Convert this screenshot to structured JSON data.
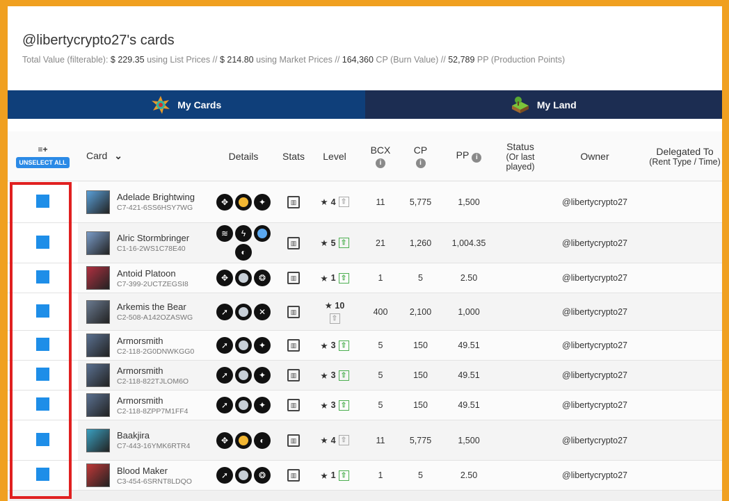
{
  "header": {
    "title": "@libertycrypto27's cards",
    "summary": {
      "lead": "Total Value (filterable): ",
      "list_value": "$ 229.35",
      "list_text": " using List Prices // ",
      "market_value": "$ 214.80",
      "market_text": " using Market Prices // ",
      "cp_value": "164,360",
      "cp_text": " CP (Burn Value) // ",
      "pp_value": "52,789",
      "pp_text": " PP (Production Points)"
    }
  },
  "tabs": [
    {
      "label": "My Cards",
      "icon": "cards-burst-icon"
    },
    {
      "label": "My Land",
      "icon": "land-plot-icon"
    }
  ],
  "table": {
    "headers": {
      "select_icon": "≡+",
      "unselect_all": "UNSELECT ALL",
      "card": "Card",
      "details": "Details",
      "stats": "Stats",
      "level": "Level",
      "bcx": "BCX",
      "cp": "CP",
      "pp": "PP",
      "status": "Status",
      "status_sub": "(Or last played)",
      "owner": "Owner",
      "delegated": "Delegated To",
      "delegated_sub": "(Rent Type / Time)"
    },
    "info_glyph": "i",
    "rows": [
      {
        "name": "Adelade Brightwing",
        "id": "C7-421-6SS6HSY7WG",
        "level": "4",
        "max": true,
        "bcx": "11",
        "cp": "5,775",
        "pp": "1,500",
        "owner": "@libertycrypto27",
        "thumb": "#5aa0d8",
        "abilities": [
          {
            "g": "✥",
            "c": "#111"
          },
          {
            "dot": "#f2b632"
          },
          {
            "g": "✦",
            "c": "#111"
          }
        ]
      },
      {
        "name": "Alric Stormbringer",
        "id": "C1-16-2WS1C78E40",
        "level": "5",
        "max": false,
        "bcx": "21",
        "cp": "1,260",
        "pp": "1,004.35",
        "owner": "@libertycrypto27",
        "thumb": "#7a9cc8",
        "abilities": [
          {
            "g": "≋",
            "c": "#111"
          },
          {
            "g": "ϟ",
            "c": "#111"
          },
          {
            "dot": "#5aa8f0"
          },
          {
            "g": "◐",
            "c": "#111"
          }
        ]
      },
      {
        "name": "Antoid Platoon",
        "id": "C7-399-2UCTZEGSI8",
        "level": "1",
        "max": false,
        "bcx": "1",
        "cp": "5",
        "pp": "2.50",
        "owner": "@libertycrypto27",
        "thumb": "#b03040",
        "abilities": [
          {
            "g": "✥",
            "c": "#111"
          },
          {
            "dot": "#c8d0d8"
          },
          {
            "g": "❂",
            "c": "#111"
          }
        ]
      },
      {
        "name": "Arkemis the Bear",
        "id": "C2-508-A142OZASWG",
        "level": "10",
        "max": true,
        "stack": true,
        "bcx": "400",
        "cp": "2,100",
        "pp": "1,000",
        "owner": "@libertycrypto27",
        "thumb": "#6a7a90",
        "abilities": [
          {
            "g": "➚",
            "c": "#111"
          },
          {
            "dot": "#c8d0d8"
          },
          {
            "g": "✕",
            "c": "#111"
          }
        ]
      },
      {
        "name": "Armorsmith",
        "id": "C2-118-2G0DNWKGG0",
        "level": "3",
        "max": false,
        "bcx": "5",
        "cp": "150",
        "pp": "49.51",
        "owner": "@libertycrypto27",
        "thumb": "#5a7090",
        "abilities": [
          {
            "g": "➚",
            "c": "#111"
          },
          {
            "dot": "#c8d0d8"
          },
          {
            "g": "✦",
            "c": "#111"
          }
        ]
      },
      {
        "name": "Armorsmith",
        "id": "C2-118-822TJLOM6O",
        "level": "3",
        "max": false,
        "bcx": "5",
        "cp": "150",
        "pp": "49.51",
        "owner": "@libertycrypto27",
        "thumb": "#5a7090",
        "abilities": [
          {
            "g": "➚",
            "c": "#111"
          },
          {
            "dot": "#c8d0d8"
          },
          {
            "g": "✦",
            "c": "#111"
          }
        ]
      },
      {
        "name": "Armorsmith",
        "id": "C2-118-8ZPP7M1FF4",
        "level": "3",
        "max": false,
        "bcx": "5",
        "cp": "150",
        "pp": "49.51",
        "owner": "@libertycrypto27",
        "thumb": "#5a7090",
        "abilities": [
          {
            "g": "➚",
            "c": "#111"
          },
          {
            "dot": "#c8d0d8"
          },
          {
            "g": "✦",
            "c": "#111"
          }
        ]
      },
      {
        "name": "Baakjira",
        "id": "C7-443-16YMK6RTR4",
        "level": "4",
        "max": true,
        "bcx": "11",
        "cp": "5,775",
        "pp": "1,500",
        "owner": "@libertycrypto27",
        "thumb": "#3aa0c0",
        "abilities": [
          {
            "g": "✥",
            "c": "#111"
          },
          {
            "dot": "#f2b632"
          },
          {
            "g": "◐",
            "c": "#111"
          }
        ]
      },
      {
        "name": "Blood Maker",
        "id": "C3-454-6SRNT8LDQO",
        "level": "1",
        "max": false,
        "bcx": "1",
        "cp": "5",
        "pp": "2.50",
        "owner": "@libertycrypto27",
        "thumb": "#c03838",
        "abilities": [
          {
            "g": "➚",
            "c": "#111"
          },
          {
            "dot": "#c8d0d8"
          },
          {
            "g": "❂",
            "c": "#111"
          }
        ]
      }
    ],
    "row_heights": [
      60,
      58,
      43,
      54,
      43,
      43,
      43,
      58,
      43
    ]
  },
  "glyphs": {
    "star": "★",
    "up": "⇧",
    "stats": "▥",
    "chevron": "⌄"
  },
  "colors": {
    "accent": "#1e8ee8",
    "tab_cards": "#0f3f7a",
    "tab_land": "#1c2d52",
    "highlight": "#e02020",
    "page_frame": "#f0a020"
  }
}
